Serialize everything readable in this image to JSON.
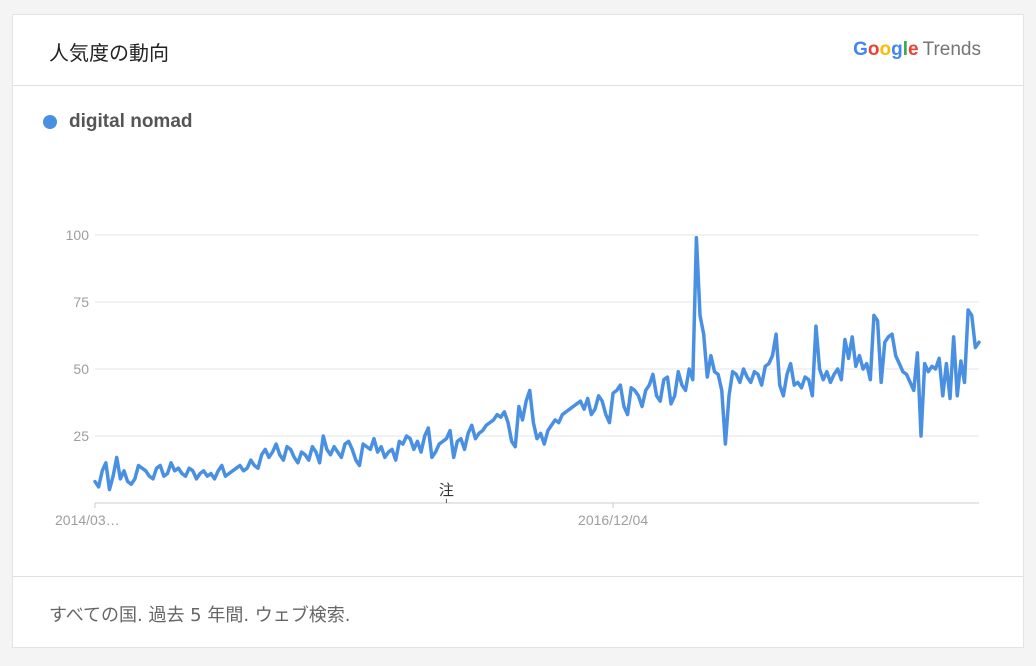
{
  "header": {
    "title": "人気度の動向",
    "brand_letters": [
      {
        "ch": "G",
        "color": "#4285F4"
      },
      {
        "ch": "o",
        "color": "#EA4335"
      },
      {
        "ch": "o",
        "color": "#FBBC05"
      },
      {
        "ch": "g",
        "color": "#4285F4"
      },
      {
        "ch": "l",
        "color": "#34A853"
      },
      {
        "ch": "e",
        "color": "#EA4335"
      }
    ],
    "product": "Trends"
  },
  "footer": {
    "text": "すべての国. 過去 5 年間. ウェブ検索."
  },
  "colors": {
    "series": "#4A90E2",
    "grid": "#e6e6e6",
    "axis": "#cccccc",
    "tick_text": "#9e9e9e"
  },
  "chart_data": {
    "type": "line",
    "title": "",
    "xlabel": "",
    "ylabel": "",
    "ylim": [
      0,
      100
    ],
    "yticks": [
      25,
      50,
      75,
      100
    ],
    "x_tick_labels": [
      "2014/03…",
      "2016/12/04"
    ],
    "x_tick_index": [
      0,
      143
    ],
    "annotation": {
      "text": "注",
      "index": 97
    },
    "grid": true,
    "legend": "top-left",
    "series": [
      {
        "name": "digital nomad",
        "color": "#4A90E2",
        "values": [
          8,
          6,
          12,
          15,
          5,
          10,
          17,
          9,
          12,
          8,
          7,
          9,
          14,
          13,
          12,
          10,
          9,
          13,
          14,
          10,
          11,
          15,
          12,
          13,
          11,
          10,
          13,
          12,
          9,
          11,
          12,
          10,
          11,
          9,
          12,
          14,
          10,
          11,
          12,
          13,
          14,
          12,
          13,
          16,
          14,
          13,
          18,
          20,
          17,
          19,
          22,
          18,
          16,
          21,
          20,
          17,
          15,
          19,
          18,
          16,
          21,
          19,
          15,
          25,
          20,
          18,
          21,
          19,
          17,
          22,
          23,
          20,
          16,
          14,
          22,
          21,
          20,
          24,
          19,
          21,
          17,
          19,
          20,
          16,
          23,
          22,
          25,
          24,
          20,
          23,
          19,
          25,
          28,
          17,
          19,
          22,
          23,
          24,
          27,
          17,
          23,
          24,
          20,
          26,
          29,
          24,
          26,
          27,
          29,
          30,
          31,
          33,
          32,
          34,
          30,
          23,
          21,
          36,
          31,
          38,
          42,
          30,
          24,
          26,
          22,
          27,
          29,
          31,
          30,
          33,
          34,
          35,
          36,
          37,
          38,
          35,
          39,
          33,
          35,
          40,
          38,
          33,
          30,
          41,
          42,
          44,
          36,
          33,
          43,
          42,
          40,
          36,
          42,
          44,
          48,
          40,
          38,
          46,
          47,
          37,
          40,
          49,
          44,
          42,
          50,
          46,
          99,
          70,
          63,
          47,
          55,
          49,
          48,
          42,
          22,
          40,
          49,
          48,
          45,
          50,
          47,
          45,
          49,
          48,
          44,
          51,
          52,
          55,
          63,
          44,
          40,
          48,
          52,
          44,
          45,
          43,
          47,
          46,
          40,
          66,
          50,
          46,
          49,
          45,
          48,
          50,
          46,
          61,
          54,
          62,
          51,
          55,
          50,
          52,
          46,
          70,
          68,
          45,
          60,
          62,
          63,
          55,
          52,
          49,
          48,
          45,
          42,
          56,
          25,
          52,
          49,
          51,
          50,
          54,
          40,
          52,
          39,
          62,
          40,
          53,
          45,
          72,
          70,
          58,
          60
        ]
      }
    ]
  }
}
